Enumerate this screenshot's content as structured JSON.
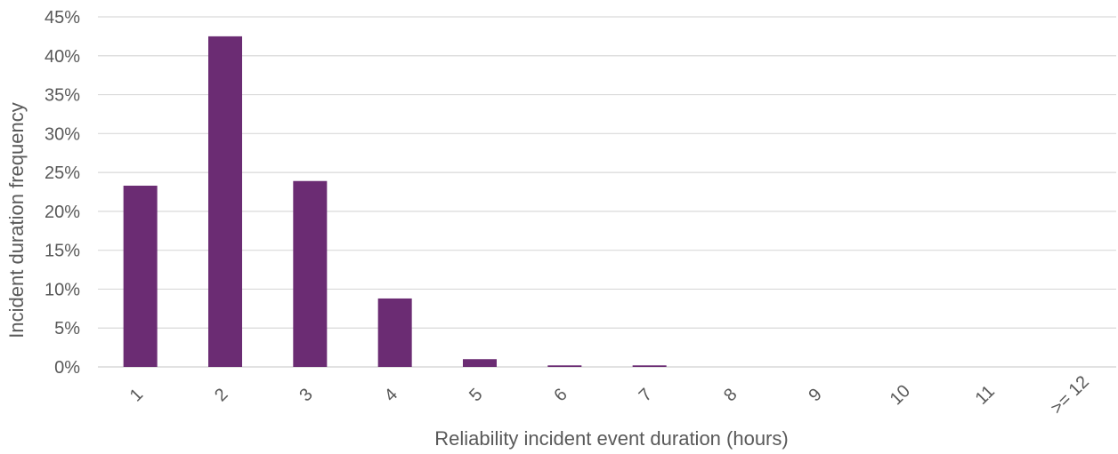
{
  "chart_data": {
    "type": "bar",
    "title": "",
    "xlabel": "Reliability incident event duration (hours)",
    "ylabel": "Incident duration frequency",
    "categories": [
      "1",
      "2",
      "3",
      "4",
      "5",
      "6",
      "7",
      "8",
      "9",
      "10",
      "11",
      ">= 12"
    ],
    "values": [
      23.3,
      42.5,
      23.9,
      8.8,
      1.0,
      0.2,
      0.2,
      0,
      0,
      0,
      0,
      0
    ],
    "ylim": [
      0,
      45
    ],
    "yticks": [
      0,
      5,
      10,
      15,
      20,
      25,
      30,
      35,
      40,
      45
    ],
    "ytick_labels": [
      "0%",
      "5%",
      "10%",
      "15%",
      "20%",
      "25%",
      "30%",
      "35%",
      "40%",
      "45%"
    ],
    "value_unit": "%",
    "grid": true,
    "legend": "none",
    "bar_color": "#6b2c73",
    "grid_color": "#d9d9d9",
    "text_color": "#595959"
  }
}
